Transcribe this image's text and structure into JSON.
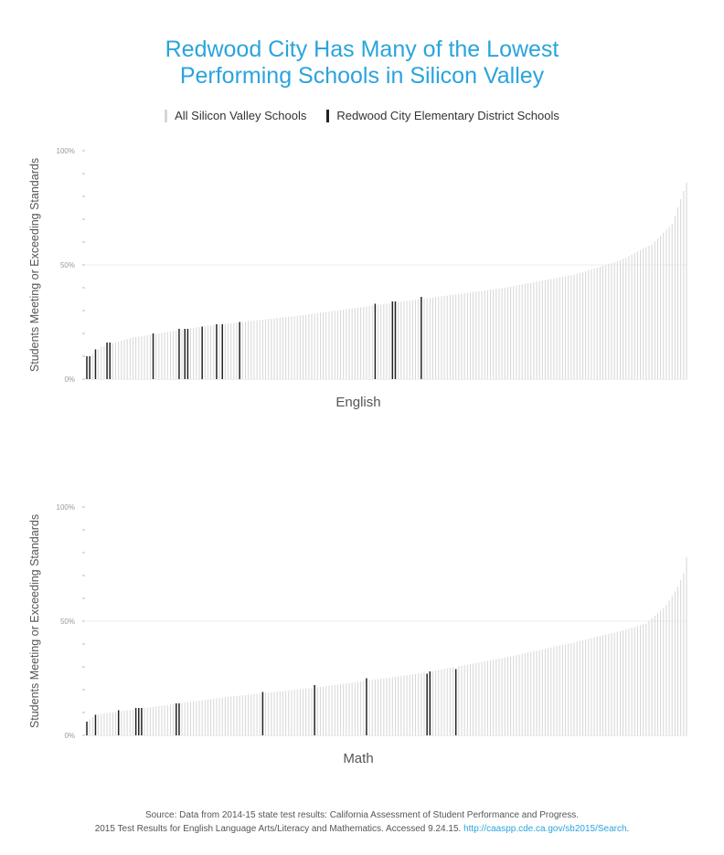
{
  "title_lines": [
    "Redwood City Has Many of the Lowest",
    "Performing Schools in Silicon Valley"
  ],
  "legend": {
    "all": {
      "label": "All Silicon Valley Schools",
      "color": "#d6d6d6"
    },
    "rwc": {
      "label": "Redwood City Elementary District Schools",
      "color": "#222222"
    }
  },
  "source": {
    "line1": "Source: Data from 2014-15 state test results: California Assessment of Student Performance and Progress.",
    "line2_text": "2015 Test Results for English Language Arts/Literacy and Mathematics. Accessed 9.24.15.",
    "line2_link": "http://caaspp.cde.ca.gov/sb2015/Search",
    "line2_end": "."
  },
  "chart_data": [
    {
      "type": "bar",
      "title": "English",
      "ylabel": "Students Meeting or Exceeding Standards",
      "ylim": [
        0,
        100
      ],
      "yticks": [
        {
          "value": 0,
          "label": "0%"
        },
        {
          "value": 50,
          "label": "50%"
        },
        {
          "value": 100,
          "label": "100%"
        }
      ],
      "minor_tick_step": 10,
      "n_schools": 209,
      "curve_knots": [
        [
          0,
          9
        ],
        [
          5,
          14
        ],
        [
          15,
          18
        ],
        [
          40,
          23
        ],
        [
          75,
          28
        ],
        [
          110,
          34
        ],
        [
          145,
          40
        ],
        [
          170,
          46
        ],
        [
          185,
          52
        ],
        [
          196,
          59
        ],
        [
          203,
          68
        ],
        [
          208,
          86
        ]
      ],
      "highlighted": [
        {
          "index": 0,
          "value": 10
        },
        {
          "index": 1,
          "value": 10
        },
        {
          "index": 3,
          "value": 13
        },
        {
          "index": 7,
          "value": 16
        },
        {
          "index": 8,
          "value": 16
        },
        {
          "index": 23,
          "value": 20
        },
        {
          "index": 32,
          "value": 22
        },
        {
          "index": 34,
          "value": 22
        },
        {
          "index": 35,
          "value": 22
        },
        {
          "index": 40,
          "value": 23
        },
        {
          "index": 45,
          "value": 24
        },
        {
          "index": 47,
          "value": 24
        },
        {
          "index": 53,
          "value": 25
        },
        {
          "index": 100,
          "value": 33
        },
        {
          "index": 106,
          "value": 34
        },
        {
          "index": 107,
          "value": 34
        },
        {
          "index": 116,
          "value": 36
        }
      ]
    },
    {
      "type": "bar",
      "title": "Math",
      "ylabel": "Students Meeting or Exceeding Standards",
      "ylim": [
        0,
        100
      ],
      "yticks": [
        {
          "value": 0,
          "label": "0%"
        },
        {
          "value": 50,
          "label": "50%"
        },
        {
          "value": 100,
          "label": "100%"
        }
      ],
      "minor_tick_step": 10,
      "n_schools": 209,
      "curve_knots": [
        [
          0,
          6
        ],
        [
          3,
          9
        ],
        [
          20,
          12
        ],
        [
          50,
          17
        ],
        [
          80,
          21
        ],
        [
          115,
          27
        ],
        [
          145,
          34
        ],
        [
          170,
          41
        ],
        [
          186,
          46
        ],
        [
          194,
          49
        ],
        [
          201,
          57
        ],
        [
          205,
          65
        ],
        [
          207,
          71
        ],
        [
          208,
          78
        ]
      ],
      "highlighted": [
        {
          "index": 0,
          "value": 6
        },
        {
          "index": 3,
          "value": 9
        },
        {
          "index": 11,
          "value": 11
        },
        {
          "index": 17,
          "value": 12
        },
        {
          "index": 18,
          "value": 12
        },
        {
          "index": 19,
          "value": 12
        },
        {
          "index": 31,
          "value": 14
        },
        {
          "index": 32,
          "value": 14
        },
        {
          "index": 61,
          "value": 19
        },
        {
          "index": 79,
          "value": 22
        },
        {
          "index": 97,
          "value": 25
        },
        {
          "index": 118,
          "value": 27
        },
        {
          "index": 119,
          "value": 28
        },
        {
          "index": 128,
          "value": 29
        }
      ]
    }
  ]
}
